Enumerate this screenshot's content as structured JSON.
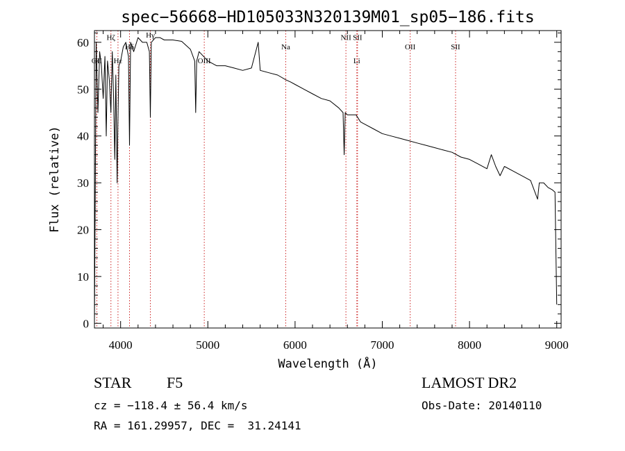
{
  "chart_data": {
    "type": "line",
    "title": "spec−56668−HD105033N320139M01_sp05−186.fits",
    "xlabel": "Wavelength (Å)",
    "ylabel": "Flux (relative)",
    "xlim": [
      3700,
      9050
    ],
    "ylim": [
      -1,
      62.5
    ],
    "xticks": [
      4000,
      5000,
      6000,
      7000,
      8000,
      9000
    ],
    "yticks": [
      0,
      10,
      20,
      30,
      40,
      50,
      60
    ],
    "grid": false,
    "line_color": "#000000",
    "marker_color": "#cc2222",
    "spectral_lines": [
      {
        "name": "Hζ",
        "wavelength": 3889,
        "label_y": 60.5
      },
      {
        "name": "OII",
        "wavelength": 3727,
        "label_y": 55.5
      },
      {
        "name": "Hε",
        "wavelength": 3970,
        "label_y": 55.5
      },
      {
        "name": "Hδ",
        "wavelength": 4102,
        "label_y": 58.5
      },
      {
        "name": "Hγ",
        "wavelength": 4341,
        "label_y": 61.0
      },
      {
        "name": "OIII",
        "wavelength": 4959,
        "label_y": 55.5
      },
      {
        "name": "Na",
        "wavelength": 5893,
        "label_y": 58.5
      },
      {
        "name": "NII",
        "wavelength": 6583,
        "label_y": 60.5
      },
      {
        "name": "SII",
        "wavelength": 6716,
        "label_y": 60.5
      },
      {
        "name": "Li",
        "wavelength": 6708,
        "label_y": 55.5
      },
      {
        "name": "OII",
        "wavelength": 7320,
        "label_y": 58.5
      },
      {
        "name": "SII",
        "wavelength": 7840,
        "label_y": 58.5
      }
    ],
    "series": [
      {
        "x": [
          3700,
          3720,
          3740,
          3760,
          3780,
          3800,
          3820,
          3835,
          3850,
          3870,
          3889,
          3905,
          3920,
          3933,
          3945,
          3960,
          3968,
          3980,
          4000,
          4030,
          4060,
          4090,
          4102,
          4115,
          4150,
          4200,
          4250,
          4300,
          4330,
          4341,
          4352,
          4400,
          4450,
          4500,
          4600,
          4700,
          4800,
          4850,
          4861,
          4872,
          4900,
          5000,
          5100,
          5200,
          5300,
          5400,
          5500,
          5577,
          5600,
          5700,
          5800,
          5893,
          5950,
          6000,
          6100,
          6200,
          6300,
          6400,
          6500,
          6550,
          6563,
          6575,
          6600,
          6700,
          6750,
          6800,
          6900,
          7000,
          7100,
          7200,
          7300,
          7400,
          7500,
          7600,
          7700,
          7800,
          7900,
          8000,
          8100,
          8200,
          8250,
          8300,
          8350,
          8400,
          8500,
          8600,
          8700,
          8780,
          8800,
          8850,
          8900,
          8950,
          8980,
          9000
        ],
        "y": [
          0,
          60,
          45,
          58,
          55,
          48,
          57,
          40,
          56,
          52,
          45,
          58,
          48,
          35,
          53,
          30,
          42,
          55,
          56,
          59,
          60,
          57,
          38,
          60,
          58,
          61,
          60,
          60,
          58,
          44,
          60,
          61,
          61,
          60.5,
          60.5,
          60.2,
          58.5,
          56,
          45,
          56,
          58,
          56,
          55,
          55,
          54.5,
          54,
          54.5,
          60,
          54,
          53.5,
          53,
          52,
          51.5,
          51,
          50,
          49,
          48,
          47.5,
          46,
          45,
          36,
          45,
          44.5,
          44.5,
          43,
          42.5,
          41.5,
          40.5,
          40,
          39.5,
          39,
          38.5,
          38,
          37.5,
          37,
          36.5,
          35.5,
          35,
          34,
          33,
          36,
          33.5,
          31.5,
          33.5,
          32.5,
          31.5,
          30.5,
          26.5,
          30,
          30,
          29,
          28.5,
          28,
          4
        ]
      }
    ]
  },
  "footer": {
    "object_type": "STAR",
    "subclass": "F5",
    "survey": "LAMOST DR2",
    "cz": "cz = −118.4 ± 56.4 km/s",
    "obs_date": "Obs-Date: 20140110",
    "coords": "RA = 161.29957, DEC =  31.24141"
  }
}
